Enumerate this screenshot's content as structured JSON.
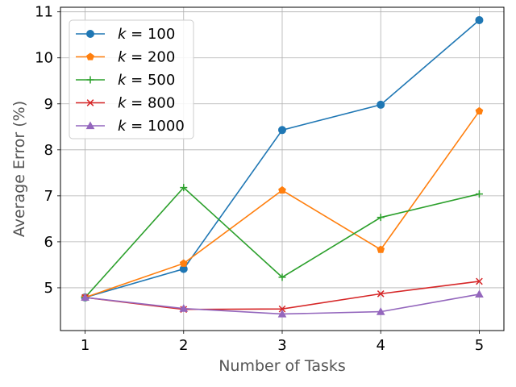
{
  "chart_data": {
    "type": "line",
    "xlabel": "Number of Tasks",
    "ylabel": "Average Error (%)",
    "x": [
      1,
      2,
      3,
      4,
      5
    ],
    "xlim": [
      0.75,
      5.25
    ],
    "ylim": [
      4.07,
      11.1
    ],
    "xticks": [
      "1",
      "2",
      "3",
      "4",
      "5"
    ],
    "yticks": [
      "5",
      "6",
      "7",
      "8",
      "9",
      "10",
      "11"
    ],
    "grid": true,
    "legend_position": "top-left",
    "series": [
      {
        "name": "k = 100",
        "legend_var": "k",
        "legend_val": "= 100",
        "color": "#1f77b4",
        "marker": "circle",
        "values": [
          4.79,
          5.41,
          8.43,
          8.98,
          10.82
        ]
      },
      {
        "name": "k = 200",
        "legend_var": "k",
        "legend_val": "= 200",
        "color": "#ff7f0e",
        "marker": "pentagon",
        "values": [
          4.79,
          5.53,
          7.12,
          5.83,
          8.84
        ]
      },
      {
        "name": "k = 500",
        "legend_var": "k",
        "legend_val": "= 500",
        "color": "#2ca02c",
        "marker": "plus",
        "values": [
          4.79,
          7.18,
          5.23,
          6.53,
          7.04
        ]
      },
      {
        "name": "k = 800",
        "legend_var": "k",
        "legend_val": "= 800",
        "color": "#d62728",
        "marker": "x",
        "values": [
          4.79,
          4.53,
          4.54,
          4.87,
          5.14
        ]
      },
      {
        "name": "k = 1000",
        "legend_var": "k",
        "legend_val": "= 1000",
        "color": "#9467bd",
        "marker": "triangle",
        "values": [
          4.79,
          4.55,
          4.43,
          4.48,
          4.86
        ]
      }
    ]
  }
}
